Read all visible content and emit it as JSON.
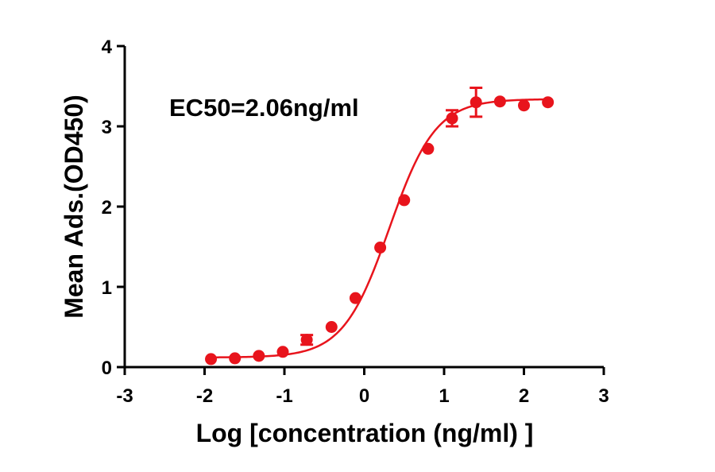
{
  "chart_data": {
    "type": "scatter",
    "annotation": "EC50=2.06ng/ml",
    "xlabel": "Log  [concentration (ng/ml) ]",
    "ylabel": "Mean Ads.(OD450)",
    "xlim": [
      -3,
      3
    ],
    "ylim": [
      0,
      4
    ],
    "x_ticks": [
      "-3",
      "-2",
      "-1",
      "0",
      "1",
      "2",
      "3"
    ],
    "y_ticks": [
      "0",
      "1",
      "2",
      "3",
      "4"
    ],
    "grid": false,
    "color": "#e8141c",
    "series": [
      {
        "x": [
          -1.92,
          -1.62,
          -1.32,
          -1.02,
          -0.72,
          -0.41,
          -0.11,
          0.2,
          0.5,
          0.8,
          1.1,
          1.4,
          1.7,
          2.0,
          2.3
        ],
        "y": [
          0.1,
          0.11,
          0.14,
          0.19,
          0.34,
          0.5,
          0.86,
          1.49,
          2.08,
          2.72,
          3.1,
          3.3,
          3.31,
          3.26,
          3.3
        ],
        "y_err": [
          0,
          0,
          0,
          0,
          0.06,
          0,
          0,
          0,
          0,
          0,
          0.1,
          0.18,
          0,
          0,
          0
        ]
      }
    ],
    "fit": {
      "model": "4PL",
      "bottom": 0.12,
      "top": 3.34,
      "log_ec50": 0.314,
      "hill": 1.5,
      "x_range": [
        -1.92,
        2.3
      ]
    }
  }
}
